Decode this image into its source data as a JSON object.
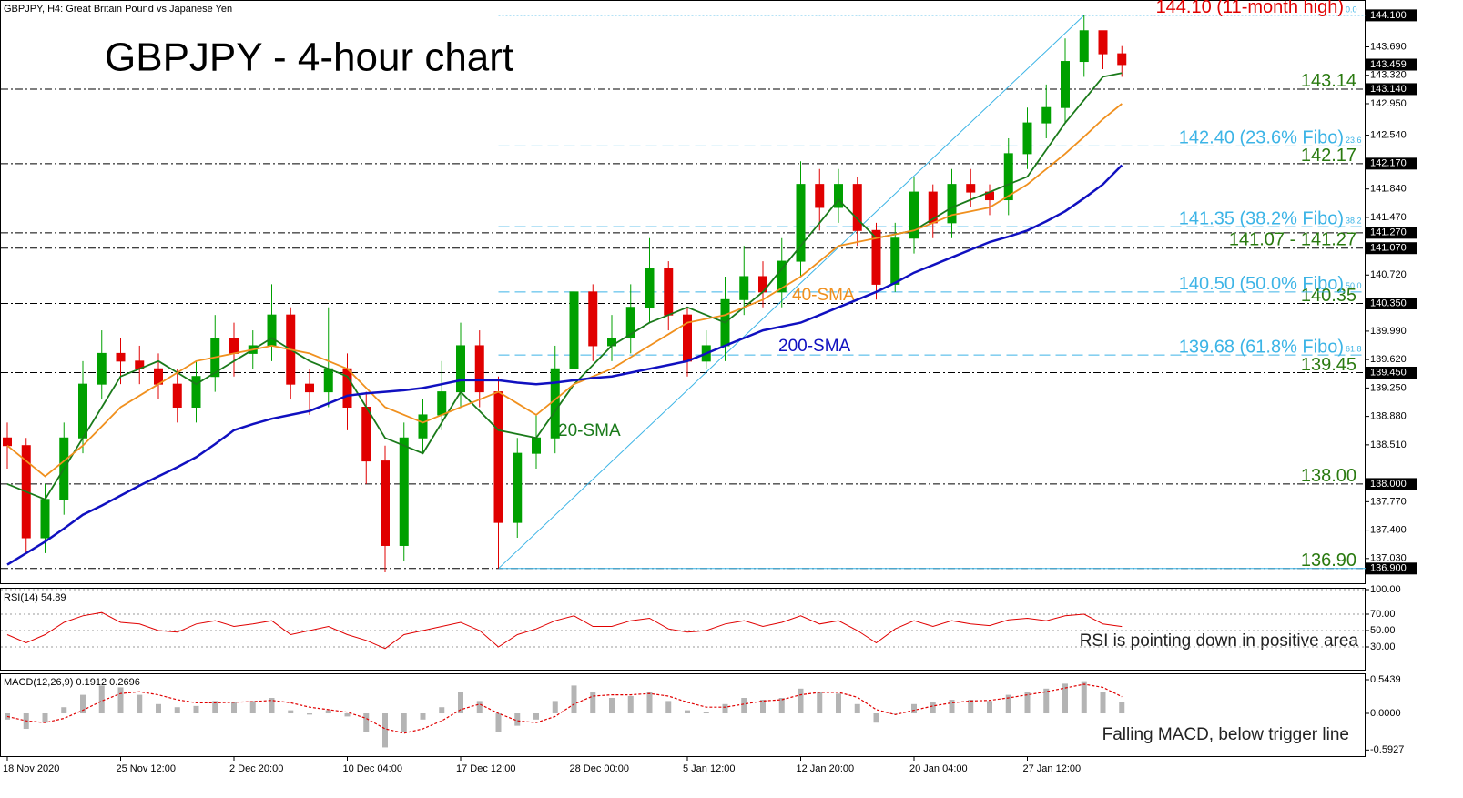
{
  "chart_data": [
    {
      "type": "candlestick",
      "header": "GBPJPY, H4:  Great Britain Pound vs Japanese Yen",
      "title": "GBPJPY - 4-hour chart",
      "categories": [
        "18 Nov 2020",
        null,
        null,
        null,
        null,
        null,
        "25 Nov 12:00",
        null,
        null,
        null,
        null,
        null,
        "2 Dec 20:00",
        null,
        null,
        null,
        null,
        null,
        "10 Dec 04:00",
        null,
        null,
        null,
        null,
        null,
        "17 Dec 12:00",
        null,
        null,
        null,
        null,
        null,
        "28 Dec 00:00",
        null,
        null,
        null,
        null,
        null,
        "5 Jan 12:00",
        null,
        null,
        null,
        null,
        null,
        "12 Jan 20:00",
        null,
        null,
        null,
        null,
        null,
        "20 Jan 04:00",
        null,
        null,
        null,
        null,
        null,
        "27 Jan 12:00",
        null,
        null,
        null,
        null,
        null
      ],
      "open": [
        138.6,
        138.5,
        137.3,
        137.8,
        138.6,
        139.3,
        139.7,
        139.6,
        139.5,
        139.3,
        139.0,
        139.4,
        139.9,
        139.7,
        139.8,
        140.2,
        139.3,
        139.2,
        139.5,
        139.0,
        138.3,
        137.2,
        138.6,
        138.9,
        139.2,
        139.8,
        139.2,
        137.5,
        138.4,
        138.6,
        139.5,
        140.5,
        139.8,
        139.9,
        140.3,
        140.8,
        140.2,
        139.6,
        139.8,
        140.4,
        140.7,
        140.5,
        140.9,
        141.9,
        141.6,
        141.9,
        141.3,
        140.6,
        141.2,
        141.8,
        141.4,
        141.9,
        141.8,
        141.7,
        142.3,
        142.7,
        142.9,
        143.5,
        143.9,
        143.6
      ],
      "high": [
        138.8,
        138.6,
        138.0,
        138.8,
        139.6,
        140.0,
        139.9,
        139.8,
        139.7,
        139.5,
        139.6,
        140.2,
        140.1,
        140.0,
        140.6,
        140.3,
        139.5,
        140.3,
        139.7,
        139.2,
        138.5,
        138.8,
        139.1,
        139.6,
        140.1,
        140.0,
        139.4,
        138.6,
        138.9,
        139.8,
        141.1,
        140.6,
        140.2,
        140.6,
        141.2,
        140.9,
        140.3,
        140.0,
        140.7,
        141.1,
        140.9,
        141.2,
        142.2,
        142.1,
        142.1,
        142.0,
        141.4,
        141.4,
        142.0,
        141.9,
        142.1,
        142.1,
        141.9,
        142.5,
        142.9,
        143.2,
        143.8,
        144.1,
        143.9,
        143.7
      ],
      "low": [
        138.2,
        137.1,
        137.1,
        137.6,
        138.4,
        139.1,
        139.3,
        139.3,
        139.1,
        138.8,
        138.8,
        139.2,
        139.4,
        139.5,
        139.6,
        139.1,
        138.9,
        139.0,
        138.7,
        138.0,
        136.85,
        137.0,
        138.4,
        138.7,
        139.0,
        139.0,
        136.9,
        137.3,
        138.2,
        138.4,
        139.3,
        139.6,
        139.6,
        139.7,
        140.1,
        140.0,
        139.4,
        139.5,
        139.6,
        140.2,
        140.3,
        140.3,
        140.7,
        141.3,
        141.4,
        141.1,
        140.4,
        140.5,
        141.0,
        141.2,
        141.2,
        141.6,
        141.5,
        141.5,
        142.1,
        142.5,
        142.7,
        143.3,
        143.4,
        143.3
      ],
      "close": [
        138.5,
        137.3,
        137.8,
        138.6,
        139.3,
        139.7,
        139.6,
        139.5,
        139.3,
        139.0,
        139.4,
        139.9,
        139.7,
        139.8,
        140.2,
        139.3,
        139.2,
        139.5,
        139.0,
        138.3,
        137.2,
        138.6,
        138.9,
        139.2,
        139.8,
        139.2,
        137.5,
        138.4,
        138.6,
        139.5,
        140.5,
        139.8,
        139.9,
        140.3,
        140.8,
        140.2,
        139.6,
        139.8,
        140.4,
        140.7,
        140.5,
        140.9,
        141.9,
        141.6,
        141.9,
        141.3,
        140.6,
        141.2,
        141.8,
        141.4,
        141.9,
        141.8,
        141.7,
        142.3,
        142.7,
        142.9,
        143.5,
        143.9,
        143.6,
        143.46
      ],
      "up_color": "#00a000",
      "down_color": "#e00000",
      "series": [
        {
          "name": "20-SMA",
          "color": "#1a7a1a",
          "values": [
            138.0,
            137.9,
            137.8,
            138.2,
            138.6,
            139.0,
            139.4,
            139.5,
            139.6,
            139.45,
            139.3,
            139.45,
            139.6,
            139.75,
            139.9,
            139.75,
            139.6,
            139.5,
            139.4,
            139.0,
            138.6,
            138.5,
            138.4,
            138.8,
            139.2,
            138.95,
            138.7,
            138.65,
            138.6,
            138.95,
            139.3,
            139.55,
            139.8,
            139.95,
            140.1,
            140.2,
            140.3,
            140.2,
            140.1,
            140.3,
            140.5,
            140.8,
            141.1,
            141.4,
            141.7,
            141.45,
            141.2,
            141.25,
            141.3,
            141.45,
            141.6,
            141.7,
            141.8,
            141.9,
            142.0,
            142.35,
            142.7,
            143.0,
            143.3,
            143.35
          ]
        },
        {
          "name": "40-SMA",
          "color": "#f0901e",
          "values": [
            138.5,
            138.3,
            138.1,
            138.3,
            138.5,
            138.75,
            139.0,
            139.15,
            139.3,
            139.45,
            139.6,
            139.65,
            139.7,
            139.75,
            139.8,
            139.75,
            139.7,
            139.6,
            139.5,
            139.25,
            139.0,
            138.9,
            138.8,
            138.9,
            139.0,
            139.1,
            139.2,
            139.05,
            138.9,
            139.1,
            139.3,
            139.4,
            139.5,
            139.65,
            139.8,
            139.95,
            140.1,
            140.15,
            140.2,
            140.3,
            140.4,
            140.55,
            140.7,
            140.9,
            141.1,
            141.15,
            141.2,
            141.25,
            141.3,
            141.4,
            141.5,
            141.55,
            141.6,
            141.75,
            141.9,
            142.1,
            142.3,
            142.52,
            142.75,
            142.95
          ]
        },
        {
          "name": "200-SMA",
          "color": "#1010c0",
          "values": [
            136.95,
            137.1,
            137.25,
            137.42,
            137.6,
            137.72,
            137.85,
            137.98,
            138.1,
            138.22,
            138.35,
            138.52,
            138.7,
            138.78,
            138.85,
            138.9,
            138.95,
            139.05,
            139.15,
            139.18,
            139.2,
            139.22,
            139.25,
            139.3,
            139.35,
            139.35,
            139.35,
            139.32,
            139.3,
            139.32,
            139.35,
            139.38,
            139.4,
            139.45,
            139.5,
            139.55,
            139.6,
            139.7,
            139.8,
            139.9,
            140.0,
            140.05,
            140.1,
            140.2,
            140.3,
            140.4,
            140.5,
            140.62,
            140.75,
            140.85,
            140.95,
            141.05,
            141.15,
            141.22,
            141.3,
            141.42,
            141.55,
            141.72,
            141.9,
            142.15
          ]
        }
      ],
      "ylim": [
        136.72,
        144.3
      ],
      "yticks": [
        {
          "value": 143.69,
          "label": "143.690"
        },
        {
          "value": 143.32,
          "label": "143.320"
        },
        {
          "value": 142.95,
          "label": "142.950"
        },
        {
          "value": 142.54,
          "label": "142.540"
        },
        {
          "value": 141.84,
          "label": "141.840"
        },
        {
          "value": 141.47,
          "label": "141.470"
        },
        {
          "value": 140.72,
          "label": "140.720"
        },
        {
          "value": 139.99,
          "label": "139.990"
        },
        {
          "value": 139.62,
          "label": "139.620"
        },
        {
          "value": 139.25,
          "label": "139.250"
        },
        {
          "value": 138.88,
          "label": "138.880"
        },
        {
          "value": 138.51,
          "label": "138.510"
        },
        {
          "value": 137.77,
          "label": "137.770"
        },
        {
          "value": 137.4,
          "label": "137.400"
        },
        {
          "value": 137.03,
          "label": "137.030"
        }
      ],
      "price_marks": [
        {
          "value": 144.1,
          "label": "144.100"
        },
        {
          "value": 143.459,
          "label": "143.459"
        },
        {
          "value": 143.14,
          "label": "143.140"
        },
        {
          "value": 142.17,
          "label": "142.170"
        },
        {
          "value": 141.27,
          "label": "141.270"
        },
        {
          "value": 141.07,
          "label": "141.070"
        },
        {
          "value": 140.35,
          "label": "140.350"
        },
        {
          "value": 139.45,
          "label": "139.450"
        },
        {
          "value": 138.0,
          "label": "138.000"
        },
        {
          "value": 136.9,
          "label": "136.900"
        }
      ],
      "levels": [
        {
          "label": "143.14",
          "values": [
            143.14
          ]
        },
        {
          "label": "142.17",
          "values": [
            142.17
          ]
        },
        {
          "label": "141.07 - 141.27",
          "values": [
            141.07,
            141.27
          ]
        },
        {
          "label": "140.35",
          "values": [
            140.35
          ]
        },
        {
          "label": "139.45",
          "values": [
            139.45
          ]
        },
        {
          "label": "138.00",
          "values": [
            138.0
          ]
        },
        {
          "label": "136.90",
          "values": [
            136.9
          ]
        }
      ],
      "fibo": [
        {
          "label": "144.10 (11-month high)",
          "value": 144.1,
          "ratio": "0.0"
        },
        {
          "label": "142.40 (23.6% Fibo)",
          "value": 142.4,
          "ratio": "23.6"
        },
        {
          "label": "141.35 (38.2% Fibo)",
          "value": 141.35,
          "ratio": "38.2"
        },
        {
          "label": "140.50 (50.0% Fibo)",
          "value": 140.5,
          "ratio": "50.0"
        },
        {
          "label": "139.68 (61.8% Fibo)",
          "value": 139.68,
          "ratio": "61.8"
        }
      ],
      "fibo_color": "#3cb4e6",
      "level_color": "#2a7a10",
      "high_color": "#e00000"
    },
    {
      "type": "line",
      "title": "RSI(14) 54.89",
      "color": "#e00000",
      "values": [
        45,
        35,
        45,
        60,
        68,
        72,
        60,
        58,
        50,
        48,
        58,
        62,
        55,
        58,
        62,
        45,
        50,
        55,
        45,
        38,
        28,
        45,
        50,
        55,
        60,
        50,
        30,
        45,
        52,
        62,
        68,
        55,
        55,
        62,
        65,
        52,
        48,
        50,
        58,
        62,
        55,
        60,
        68,
        58,
        62,
        50,
        35,
        52,
        62,
        55,
        62,
        58,
        56,
        63,
        65,
        62,
        68,
        70,
        58,
        54.89
      ],
      "ylim": [
        0,
        100
      ],
      "yticks": [
        {
          "value": 100,
          "label": "100.00"
        },
        {
          "value": 70,
          "label": "70.00"
        },
        {
          "value": 50,
          "label": "50.00"
        },
        {
          "value": 30,
          "label": "30.00"
        }
      ],
      "annotation": "RSI is pointing down in positive area"
    },
    {
      "type": "macd",
      "title": "MACD(12,26,9) 0.1912 0.2696",
      "bar_color": "#b4b4b4",
      "signal_color": "#e00000",
      "values": [
        -0.1,
        -0.25,
        -0.15,
        0.1,
        0.3,
        0.45,
        0.42,
        0.3,
        0.15,
        0.1,
        0.12,
        0.2,
        0.18,
        0.2,
        0.25,
        0.05,
        -0.02,
        0.05,
        -0.05,
        -0.3,
        -0.55,
        -0.3,
        -0.1,
        0.1,
        0.35,
        0.2,
        -0.3,
        -0.2,
        -0.1,
        0.2,
        0.45,
        0.35,
        0.25,
        0.28,
        0.35,
        0.2,
        0.05,
        0.02,
        0.15,
        0.25,
        0.22,
        0.25,
        0.4,
        0.35,
        0.32,
        0.15,
        -0.15,
        0.0,
        0.15,
        0.18,
        0.22,
        0.22,
        0.2,
        0.3,
        0.35,
        0.4,
        0.48,
        0.52,
        0.35,
        0.1912
      ],
      "signal": [
        -0.05,
        -0.12,
        -0.15,
        -0.08,
        0.05,
        0.2,
        0.32,
        0.35,
        0.3,
        0.22,
        0.17,
        0.17,
        0.18,
        0.19,
        0.21,
        0.17,
        0.1,
        0.06,
        0.02,
        -0.08,
        -0.25,
        -0.32,
        -0.25,
        -0.12,
        0.06,
        0.15,
        0.0,
        -0.12,
        -0.15,
        -0.05,
        0.15,
        0.28,
        0.3,
        0.3,
        0.32,
        0.28,
        0.18,
        0.1,
        0.1,
        0.15,
        0.2,
        0.22,
        0.3,
        0.34,
        0.34,
        0.26,
        0.06,
        -0.02,
        0.05,
        0.12,
        0.17,
        0.2,
        0.21,
        0.25,
        0.3,
        0.35,
        0.41,
        0.47,
        0.42,
        0.2696
      ],
      "ylim": [
        -0.676,
        0.647
      ],
      "yticks": [
        {
          "value": 0.5439,
          "label": "0.5439"
        },
        {
          "value": 0,
          "label": "0.0000"
        },
        {
          "value": -0.5927,
          "label": "-0.5927"
        }
      ],
      "annotation": "Falling MACD, below trigger line"
    }
  ]
}
